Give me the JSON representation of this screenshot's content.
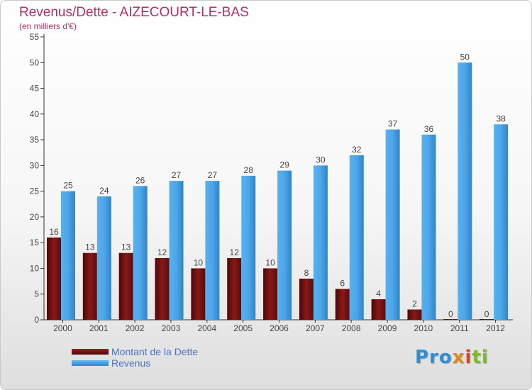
{
  "chart_data": {
    "type": "bar",
    "title": "Revenus/Dette - AIZECOURT-LE-BAS",
    "subtitle": "(en milliers d'€)",
    "categories": [
      "2000",
      "2001",
      "2002",
      "2003",
      "2004",
      "2005",
      "2006",
      "2007",
      "2008",
      "2009",
      "2010",
      "2011",
      "2012"
    ],
    "series": [
      {
        "name": "Montant de la Dette",
        "color": "#7a1212",
        "values": [
          16,
          13,
          13,
          12,
          10,
          12,
          10,
          8,
          6,
          4,
          2,
          0,
          0
        ]
      },
      {
        "name": "Revenus",
        "color": "#4da6e8",
        "values": [
          25,
          24,
          26,
          27,
          27,
          28,
          29,
          30,
          32,
          37,
          36,
          50,
          38
        ]
      }
    ],
    "ylim": [
      0,
      55
    ],
    "yticks": [
      0,
      5,
      10,
      15,
      20,
      25,
      30,
      35,
      40,
      45,
      50,
      55
    ],
    "xlabel": "",
    "ylabel": "",
    "grid": false,
    "legend": "bottom-left"
  },
  "logo": {
    "text": "Proxiti",
    "letters": [
      "Pro",
      "x",
      "i",
      "ti"
    ]
  }
}
